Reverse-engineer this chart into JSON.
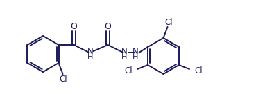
{
  "bg_color": "#ffffff",
  "line_color": "#1a1a5a",
  "line_width": 1.4,
  "font_size": 8.5,
  "fig_width": 3.95,
  "fig_height": 1.36,
  "dpi": 100,
  "xlim": [
    0,
    395
  ],
  "ylim": [
    0,
    136
  ]
}
